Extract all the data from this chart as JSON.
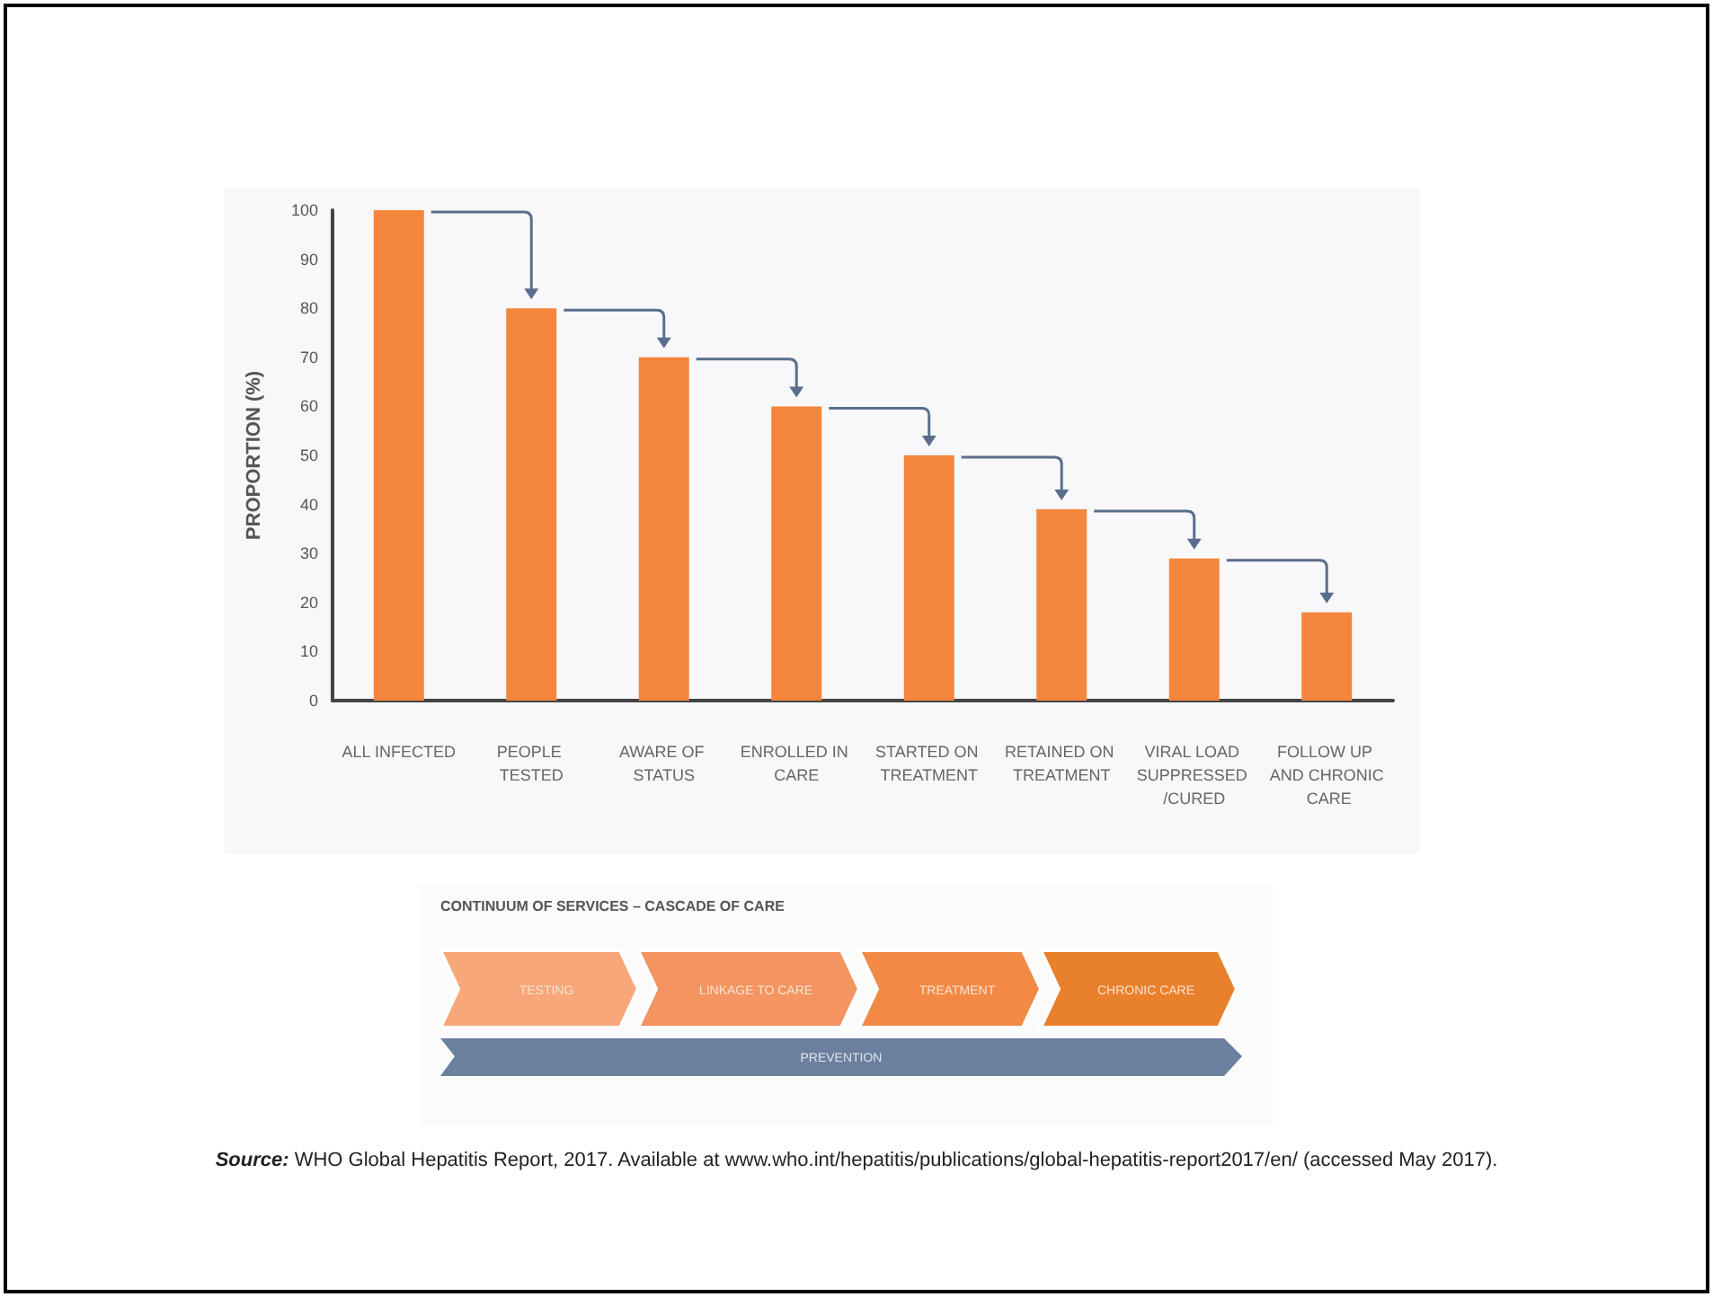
{
  "chart_data": {
    "type": "bar",
    "ylabel": "PROPORTION (%)",
    "categories": [
      "ALL INFECTED",
      "PEOPLE TESTED",
      "AWARE OF STATUS",
      "ENROLLED IN CARE",
      "STARTED ON TREATMENT",
      "RETAINED ON TREATMENT",
      "VIRAL LOAD SUPPRESSED /CURED",
      "FOLLOW UP AND CHRONIC CARE"
    ],
    "values": [
      100,
      80,
      70,
      60,
      50,
      39,
      29,
      18
    ],
    "color": "#f4863c",
    "ylim": [
      0,
      100
    ],
    "yticks": [
      0,
      10,
      20,
      30,
      40,
      50,
      60,
      70,
      80,
      90,
      100
    ],
    "grid": false,
    "annotations": [
      "CONTINUUM OF SERVICES – CASCADE OF CARE",
      "TESTING",
      "LINKAGE TO CARE",
      "TREATMENT",
      "CHRONIC CARE",
      "PREVENTION",
      "Source: WHO Global Hepatitis Report, 2017. Available at www.who.int/hepatitis/publications/global-hepatitis-report2017/en/ (accessed May 2017)."
    ]
  }
}
